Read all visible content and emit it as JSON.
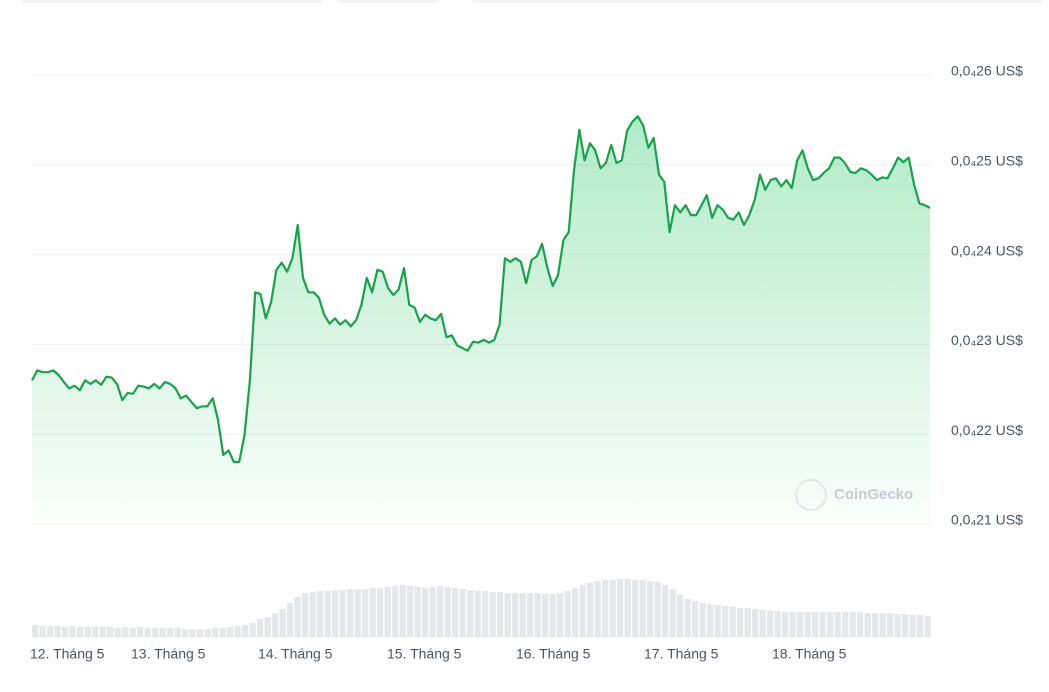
{
  "chart_data": {
    "type": "line",
    "watermark": "CoinGecko",
    "x_labels": [
      "12. Tháng 5",
      "13. Tháng 5",
      "14. Tháng 5",
      "15. Tháng 5",
      "16. Tháng 5",
      "17. Tháng 5",
      "18. Tháng 5"
    ],
    "ylim": [
      2.1e-05,
      2.6e-05
    ],
    "yticks": [
      {
        "value": 2.6e-05,
        "label": "0,0₄26 US$"
      },
      {
        "value": 2.5e-05,
        "label": "0,0₄25 US$"
      },
      {
        "value": 2.4e-05,
        "label": "0,0₄24 US$"
      },
      {
        "value": 2.3e-05,
        "label": "0,0₄23 US$"
      },
      {
        "value": 2.2e-05,
        "label": "0,0₄22 US$"
      },
      {
        "value": 2.1e-05,
        "label": "0,0₄21 US$"
      }
    ],
    "grid": true,
    "color": "#16a34a",
    "values": [
      2.26e-05,
      2.271e-05,
      2.269e-05,
      2.269e-05,
      2.271e-05,
      2.266e-05,
      2.258e-05,
      2.251e-05,
      2.254e-05,
      2.249e-05,
      2.26e-05,
      2.256e-05,
      2.26e-05,
      2.255e-05,
      2.264e-05,
      2.263e-05,
      2.256e-05,
      2.238e-05,
      2.246e-05,
      2.245e-05,
      2.254e-05,
      2.253e-05,
      2.251e-05,
      2.256e-05,
      2.251e-05,
      2.258e-05,
      2.256e-05,
      2.251e-05,
      2.24e-05,
      2.243e-05,
      2.236e-05,
      2.229e-05,
      2.231e-05,
      2.231e-05,
      2.24e-05,
      2.216e-05,
      2.177e-05,
      2.182e-05,
      2.169e-05,
      2.169e-05,
      2.199e-05,
      2.26e-05,
      2.358e-05,
      2.356e-05,
      2.329e-05,
      2.347e-05,
      2.383e-05,
      2.391e-05,
      2.381e-05,
      2.396e-05,
      2.433e-05,
      2.374e-05,
      2.358e-05,
      2.358e-05,
      2.352e-05,
      2.333e-05,
      2.323e-05,
      2.329e-05,
      2.322e-05,
      2.327e-05,
      2.32e-05,
      2.327e-05,
      2.344e-05,
      2.374e-05,
      2.358e-05,
      2.383e-05,
      2.381e-05,
      2.363e-05,
      2.355e-05,
      2.361e-05,
      2.385e-05,
      2.344e-05,
      2.341e-05,
      2.325e-05,
      2.333e-05,
      2.329e-05,
      2.327e-05,
      2.334e-05,
      2.308e-05,
      2.31e-05,
      2.299e-05,
      2.296e-05,
      2.293e-05,
      2.303e-05,
      2.302e-05,
      2.305e-05,
      2.302e-05,
      2.305e-05,
      2.322e-05,
      2.396e-05,
      2.392e-05,
      2.396e-05,
      2.392e-05,
      2.368e-05,
      2.394e-05,
      2.398e-05,
      2.412e-05,
      2.385e-05,
      2.365e-05,
      2.377e-05,
      2.416e-05,
      2.425e-05,
      2.494e-05,
      2.539e-05,
      2.505e-05,
      2.524e-05,
      2.516e-05,
      2.496e-05,
      2.502e-05,
      2.522e-05,
      2.502e-05,
      2.505e-05,
      2.538e-05,
      2.548e-05,
      2.554e-05,
      2.544e-05,
      2.519e-05,
      2.53e-05,
      2.489e-05,
      2.481e-05,
      2.425e-05,
      2.455e-05,
      2.447e-05,
      2.455e-05,
      2.444e-05,
      2.444e-05,
      2.455e-05,
      2.466e-05,
      2.441e-05,
      2.455e-05,
      2.45e-05,
      2.441e-05,
      2.439e-05,
      2.447e-05,
      2.433e-05,
      2.444e-05,
      2.461e-05,
      2.489e-05,
      2.472e-05,
      2.483e-05,
      2.485e-05,
      2.476e-05,
      2.483e-05,
      2.474e-05,
      2.505e-05,
      2.516e-05,
      2.496e-05,
      2.483e-05,
      2.485e-05,
      2.491e-05,
      2.496e-05,
      2.508e-05,
      2.508e-05,
      2.502e-05,
      2.492e-05,
      2.491e-05,
      2.496e-05,
      2.494e-05,
      2.489e-05,
      2.483e-05,
      2.486e-05,
      2.485e-05,
      2.496e-05,
      2.508e-05,
      2.503e-05,
      2.508e-05,
      2.478e-05,
      2.457e-05,
      2.455e-05,
      2.452e-05
    ],
    "volume": {
      "color": "#e5e7eb",
      "values": [
        12,
        11,
        11,
        11,
        10,
        11,
        10,
        10,
        10,
        10,
        10,
        9,
        10,
        9,
        10,
        9,
        9,
        9,
        9,
        9,
        8,
        8,
        8,
        8,
        9,
        9,
        10,
        11,
        12,
        14,
        18,
        20,
        24,
        28,
        34,
        40,
        44,
        45,
        46,
        46,
        47,
        47,
        48,
        48,
        48,
        49,
        49,
        50,
        51,
        52,
        51,
        50,
        49,
        50,
        51,
        50,
        49,
        48,
        47,
        46,
        46,
        45,
        45,
        44,
        44,
        44,
        44,
        44,
        43,
        43,
        44,
        46,
        49,
        52,
        54,
        56,
        57,
        57,
        58,
        58,
        57,
        57,
        56,
        55,
        52,
        48,
        42,
        38,
        36,
        34,
        33,
        32,
        31,
        30,
        29,
        29,
        28,
        27,
        26,
        26,
        25,
        25,
        25,
        25,
        25,
        25,
        25,
        25,
        25,
        25,
        25,
        24,
        24,
        24,
        24,
        23,
        23,
        22,
        22,
        21
      ]
    }
  }
}
